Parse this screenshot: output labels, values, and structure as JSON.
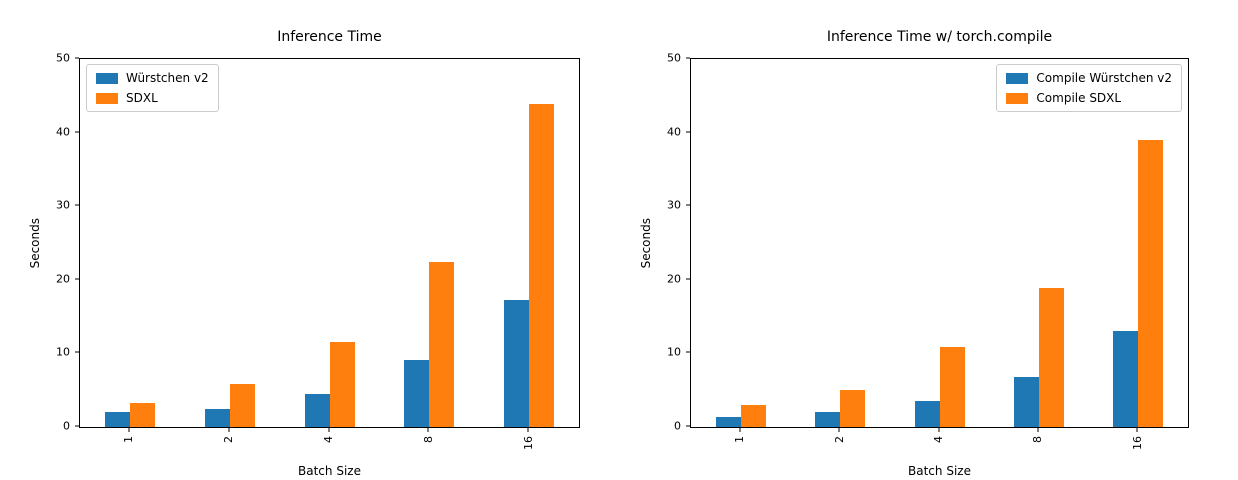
{
  "figure": {
    "background": "#ffffff",
    "axis_color": "#000000"
  },
  "chart_data": [
    {
      "type": "bar",
      "title": "Inference Time",
      "xlabel": "Batch Size",
      "ylabel": "Seconds",
      "categories": [
        "1",
        "2",
        "4",
        "8",
        "16"
      ],
      "series": [
        {
          "name": "Würstchen v2",
          "color": "#1f77b4",
          "values": [
            2.0,
            2.5,
            4.5,
            9.1,
            17.3
          ]
        },
        {
          "name": "SDXL",
          "color": "#ff7f0e",
          "values": [
            3.3,
            5.8,
            11.6,
            22.4,
            43.9
          ]
        }
      ],
      "ylim": [
        0,
        50
      ],
      "yticks": [
        0,
        10,
        20,
        30,
        40,
        50
      ],
      "grid": false,
      "legend_position": "upper-left",
      "xtick_rotation": 90
    },
    {
      "type": "bar",
      "title": "Inference Time w/ torch.compile",
      "xlabel": "Batch Size",
      "ylabel": "Seconds",
      "categories": [
        "1",
        "2",
        "4",
        "8",
        "16"
      ],
      "series": [
        {
          "name": "Compile Würstchen v2",
          "color": "#1f77b4",
          "values": [
            1.3,
            2.0,
            3.5,
            6.8,
            13.0
          ]
        },
        {
          "name": "Compile SDXL",
          "color": "#ff7f0e",
          "values": [
            3.0,
            5.0,
            10.9,
            18.9,
            39.0
          ]
        }
      ],
      "ylim": [
        0,
        50
      ],
      "yticks": [
        0,
        10,
        20,
        30,
        40,
        50
      ],
      "grid": false,
      "legend_position": "upper-right",
      "xtick_rotation": 90
    }
  ]
}
